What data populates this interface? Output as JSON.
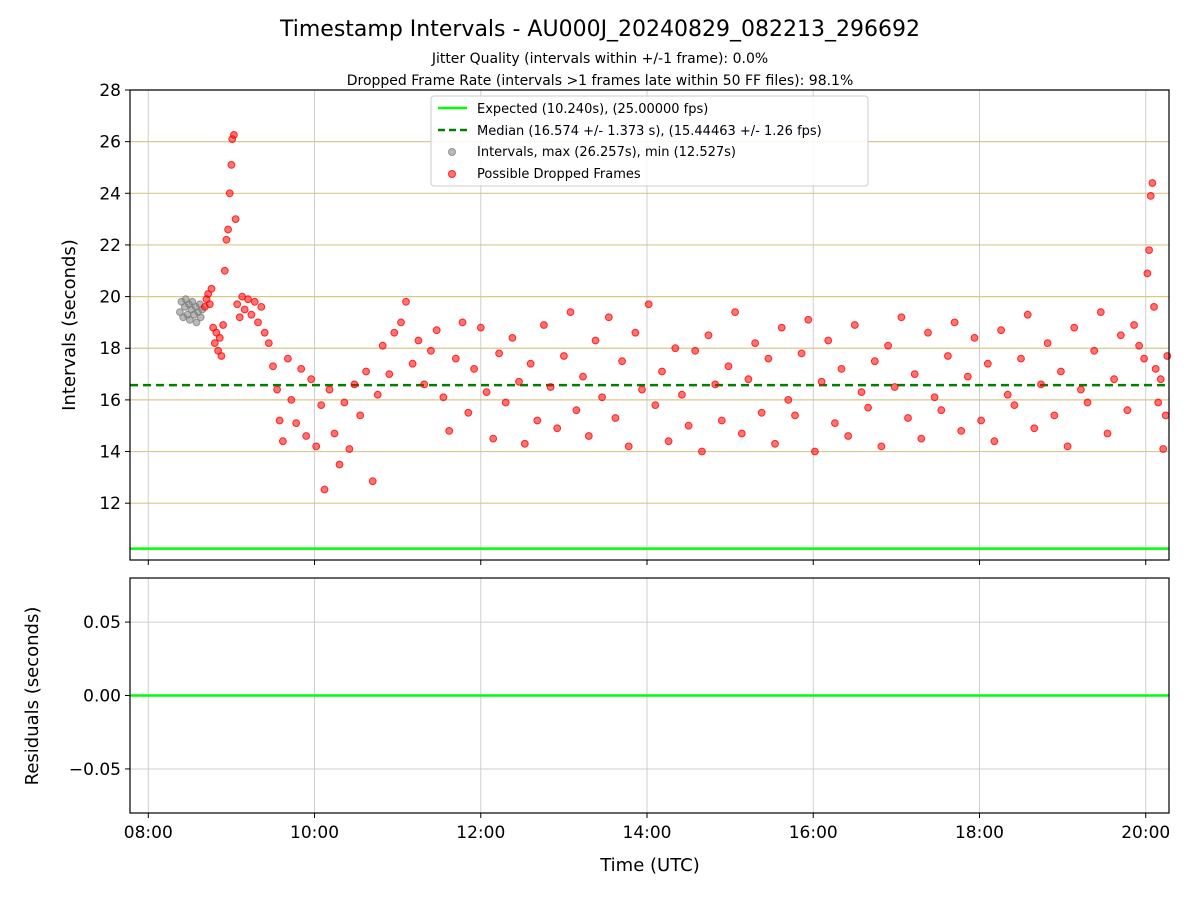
{
  "chart_data": [
    {
      "type": "scatter",
      "title": "Timestamp Intervals - AU000J_20240829_082213_296692",
      "subtitle_lines": [
        "Jitter Quality (intervals within +/-1 frame): 0.0%",
        "Dropped Frame Rate (intervals >1 frames late within 50 FF files): 98.1%"
      ],
      "xlabel": "",
      "ylabel": "Intervals (seconds)",
      "xlim_hours": [
        7.78,
        20.28
      ],
      "ylim": [
        9.8,
        28
      ],
      "yticks": [
        12,
        14,
        16,
        18,
        20,
        22,
        24,
        26,
        28
      ],
      "grid": true,
      "legend_position": "top-center",
      "expected_interval": 10.24,
      "median_interval": 16.574,
      "legend": [
        {
          "label": "Expected (10.240s), (25.00000 fps)",
          "color": "#00ff00",
          "style": "solid-line"
        },
        {
          "label": "Median (16.574 +/- 1.373 s), (15.44463 +/- 1.26 fps)",
          "color": "#007f00",
          "style": "dashed-line"
        },
        {
          "label": "Intervals, max (26.257s), min (12.527s)",
          "color": "#808080",
          "style": "marker"
        },
        {
          "label": "Possible Dropped Frames",
          "color": "#ff0000",
          "style": "marker"
        }
      ],
      "series": [
        {
          "name": "Intervals, max (26.257s), min (12.527s)",
          "color": "#808080",
          "points": [
            [
              8.38,
              19.4
            ],
            [
              8.4,
              19.8
            ],
            [
              8.42,
              19.2
            ],
            [
              8.44,
              19.6
            ],
            [
              8.45,
              19.9
            ],
            [
              8.47,
              19.3
            ],
            [
              8.49,
              19.7
            ],
            [
              8.5,
              19.1
            ],
            [
              8.52,
              19.5
            ],
            [
              8.53,
              19.8
            ],
            [
              8.55,
              19.3
            ],
            [
              8.57,
              19.6
            ],
            [
              8.58,
              19.0
            ],
            [
              8.6,
              19.4
            ],
            [
              8.62,
              19.7
            ],
            [
              8.63,
              19.2
            ],
            [
              8.65,
              19.5
            ]
          ]
        },
        {
          "name": "Possible Dropped Frames",
          "color": "#ff0000",
          "points": [
            [
              8.68,
              19.6
            ],
            [
              8.7,
              19.9
            ],
            [
              8.72,
              20.1
            ],
            [
              8.74,
              19.7
            ],
            [
              8.76,
              20.3
            ],
            [
              8.78,
              18.8
            ],
            [
              8.8,
              18.2
            ],
            [
              8.82,
              18.6
            ],
            [
              8.84,
              17.9
            ],
            [
              8.86,
              18.4
            ],
            [
              8.88,
              17.7
            ],
            [
              8.9,
              18.9
            ],
            [
              8.92,
              21.0
            ],
            [
              8.94,
              22.2
            ],
            [
              8.96,
              22.6
            ],
            [
              8.98,
              24.0
            ],
            [
              9.0,
              25.1
            ],
            [
              9.01,
              26.1
            ],
            [
              9.03,
              26.26
            ],
            [
              9.05,
              23.0
            ],
            [
              9.07,
              19.7
            ],
            [
              9.1,
              19.2
            ],
            [
              9.13,
              20.0
            ],
            [
              9.16,
              19.5
            ],
            [
              9.2,
              19.9
            ],
            [
              9.24,
              19.3
            ],
            [
              9.28,
              19.8
            ],
            [
              9.32,
              19.0
            ],
            [
              9.36,
              19.6
            ],
            [
              9.4,
              18.6
            ],
            [
              9.45,
              18.2
            ],
            [
              9.5,
              17.3
            ],
            [
              9.55,
              16.4
            ],
            [
              9.58,
              15.2
            ],
            [
              9.62,
              14.4
            ],
            [
              9.68,
              17.6
            ],
            [
              9.72,
              16.0
            ],
            [
              9.78,
              15.1
            ],
            [
              9.84,
              17.2
            ],
            [
              9.9,
              14.6
            ],
            [
              9.96,
              16.8
            ],
            [
              10.02,
              14.2
            ],
            [
              10.08,
              15.8
            ],
            [
              10.12,
              12.53
            ],
            [
              10.18,
              16.4
            ],
            [
              10.24,
              14.7
            ],
            [
              10.3,
              13.5
            ],
            [
              10.36,
              15.9
            ],
            [
              10.42,
              14.1
            ],
            [
              10.48,
              16.6
            ],
            [
              10.55,
              15.4
            ],
            [
              10.62,
              17.1
            ],
            [
              10.7,
              12.85
            ],
            [
              10.76,
              16.2
            ],
            [
              10.82,
              18.1
            ],
            [
              10.9,
              17.0
            ],
            [
              10.96,
              18.6
            ],
            [
              11.04,
              19.0
            ],
            [
              11.1,
              19.8
            ],
            [
              11.18,
              17.4
            ],
            [
              11.25,
              18.3
            ],
            [
              11.32,
              16.6
            ],
            [
              11.4,
              17.9
            ],
            [
              11.47,
              18.7
            ],
            [
              11.55,
              16.1
            ],
            [
              11.62,
              14.8
            ],
            [
              11.7,
              17.6
            ],
            [
              11.78,
              19.0
            ],
            [
              11.85,
              15.5
            ],
            [
              11.92,
              17.2
            ],
            [
              12.0,
              18.8
            ],
            [
              12.07,
              16.3
            ],
            [
              12.15,
              14.5
            ],
            [
              12.22,
              17.8
            ],
            [
              12.3,
              15.9
            ],
            [
              12.38,
              18.4
            ],
            [
              12.46,
              16.7
            ],
            [
              12.53,
              14.3
            ],
            [
              12.6,
              17.4
            ],
            [
              12.68,
              15.2
            ],
            [
              12.76,
              18.9
            ],
            [
              12.84,
              16.5
            ],
            [
              12.92,
              14.9
            ],
            [
              13.0,
              17.7
            ],
            [
              13.08,
              19.4
            ],
            [
              13.15,
              15.6
            ],
            [
              13.23,
              16.9
            ],
            [
              13.3,
              14.6
            ],
            [
              13.38,
              18.3
            ],
            [
              13.46,
              16.1
            ],
            [
              13.54,
              19.2
            ],
            [
              13.62,
              15.3
            ],
            [
              13.7,
              17.5
            ],
            [
              13.78,
              14.2
            ],
            [
              13.86,
              18.6
            ],
            [
              13.94,
              16.4
            ],
            [
              14.02,
              19.7
            ],
            [
              14.1,
              15.8
            ],
            [
              14.18,
              17.1
            ],
            [
              14.26,
              14.4
            ],
            [
              14.34,
              18.0
            ],
            [
              14.42,
              16.2
            ],
            [
              14.5,
              15.0
            ],
            [
              14.58,
              17.9
            ],
            [
              14.66,
              14.0
            ],
            [
              14.74,
              18.5
            ],
            [
              14.82,
              16.6
            ],
            [
              14.9,
              15.2
            ],
            [
              14.98,
              17.3
            ],
            [
              15.06,
              19.4
            ],
            [
              15.14,
              14.7
            ],
            [
              15.22,
              16.8
            ],
            [
              15.3,
              18.2
            ],
            [
              15.38,
              15.5
            ],
            [
              15.46,
              17.6
            ],
            [
              15.54,
              14.3
            ],
            [
              15.62,
              18.8
            ],
            [
              15.7,
              16.0
            ],
            [
              15.78,
              15.4
            ],
            [
              15.86,
              17.8
            ],
            [
              15.94,
              19.1
            ],
            [
              16.02,
              14.0
            ],
            [
              16.1,
              16.7
            ],
            [
              16.18,
              18.3
            ],
            [
              16.26,
              15.1
            ],
            [
              16.34,
              17.2
            ],
            [
              16.42,
              14.6
            ],
            [
              16.5,
              18.9
            ],
            [
              16.58,
              16.3
            ],
            [
              16.66,
              15.7
            ],
            [
              16.74,
              17.5
            ],
            [
              16.82,
              14.2
            ],
            [
              16.9,
              18.1
            ],
            [
              16.98,
              16.5
            ],
            [
              17.06,
              19.2
            ],
            [
              17.14,
              15.3
            ],
            [
              17.22,
              17.0
            ],
            [
              17.3,
              14.5
            ],
            [
              17.38,
              18.6
            ],
            [
              17.46,
              16.1
            ],
            [
              17.54,
              15.6
            ],
            [
              17.62,
              17.7
            ],
            [
              17.7,
              19.0
            ],
            [
              17.78,
              14.8
            ],
            [
              17.86,
              16.9
            ],
            [
              17.94,
              18.4
            ],
            [
              18.02,
              15.2
            ],
            [
              18.1,
              17.4
            ],
            [
              18.18,
              14.4
            ],
            [
              18.26,
              18.7
            ],
            [
              18.34,
              16.2
            ],
            [
              18.42,
              15.8
            ],
            [
              18.5,
              17.6
            ],
            [
              18.58,
              19.3
            ],
            [
              18.66,
              14.9
            ],
            [
              18.74,
              16.6
            ],
            [
              18.82,
              18.2
            ],
            [
              18.9,
              15.4
            ],
            [
              18.98,
              17.1
            ],
            [
              19.06,
              14.2
            ],
            [
              19.14,
              18.8
            ],
            [
              19.22,
              16.4
            ],
            [
              19.3,
              15.9
            ],
            [
              19.38,
              17.9
            ],
            [
              19.46,
              19.4
            ],
            [
              19.54,
              14.7
            ],
            [
              19.62,
              16.8
            ],
            [
              19.7,
              18.5
            ],
            [
              19.78,
              15.6
            ],
            [
              19.86,
              18.9
            ],
            [
              19.92,
              18.1
            ],
            [
              19.98,
              17.6
            ],
            [
              20.02,
              20.9
            ],
            [
              20.04,
              21.8
            ],
            [
              20.06,
              23.9
            ],
            [
              20.08,
              24.4
            ],
            [
              20.1,
              19.6
            ],
            [
              20.12,
              17.2
            ],
            [
              20.15,
              15.9
            ],
            [
              20.18,
              16.8
            ],
            [
              20.21,
              14.1
            ],
            [
              20.24,
              15.4
            ],
            [
              20.26,
              17.7
            ]
          ]
        }
      ]
    },
    {
      "type": "line",
      "xlabel": "Time (UTC)",
      "ylabel": "Residuals (seconds)",
      "xlim_hours": [
        7.78,
        20.28
      ],
      "ylim": [
        -0.08,
        0.08
      ],
      "yticks": [
        "−0.05",
        "0.00",
        "0.05"
      ],
      "ytick_values": [
        -0.05,
        0,
        0.05
      ],
      "xticks": [
        "08:00",
        "10:00",
        "12:00",
        "14:00",
        "16:00",
        "18:00",
        "20:00"
      ],
      "xtick_values": [
        8,
        10,
        12,
        14,
        16,
        18,
        20
      ],
      "grid": true,
      "series": [
        {
          "color": "#00ff00",
          "x": [
            7.78,
            20.28
          ],
          "values": [
            0,
            0
          ]
        }
      ]
    }
  ]
}
